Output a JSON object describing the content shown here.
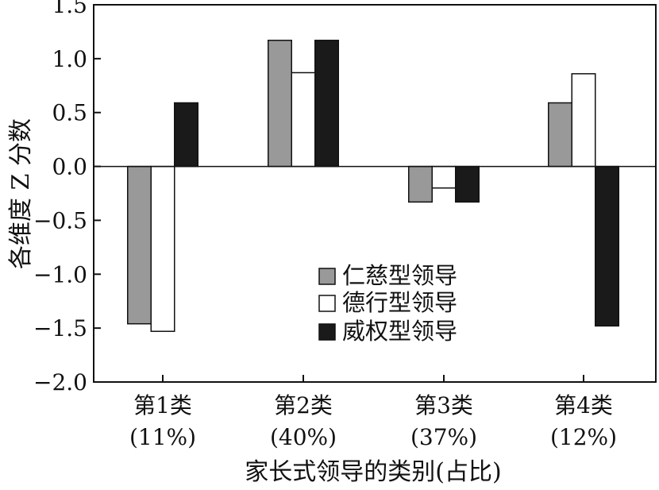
{
  "chart_data": {
    "type": "bar",
    "categories": [
      "第1类",
      "第2类",
      "第3类",
      "第4类"
    ],
    "category_shares": [
      "(11%)",
      "(40%)",
      "(37%)",
      "(12%)"
    ],
    "series": [
      {
        "name": "仁慈型领导",
        "color": "#999999",
        "values": [
          -1.46,
          1.17,
          -0.33,
          0.59
        ]
      },
      {
        "name": "德行型领导",
        "color": "#ffffff",
        "values": [
          -1.53,
          0.87,
          -0.2,
          0.86
        ]
      },
      {
        "name": "威权型领导",
        "color": "#1a1a1a",
        "values": [
          0.59,
          1.17,
          -0.33,
          -1.48
        ]
      }
    ],
    "xlabel": "家长式领导的类别(占比)",
    "ylabel": "各维度 Z 分数",
    "ylim": [
      -2.0,
      1.5
    ],
    "yticks": [
      -2.0,
      -1.5,
      -1.0,
      -0.5,
      0.0,
      0.5,
      1.0,
      1.5
    ],
    "ytick_labels": [
      "−2.0",
      "−1.5",
      "−1.0",
      "−0.5",
      "0.0",
      "0.5",
      "1.0",
      "1.5"
    ],
    "legend_position": "center",
    "grid": false,
    "zero_line": true
  }
}
